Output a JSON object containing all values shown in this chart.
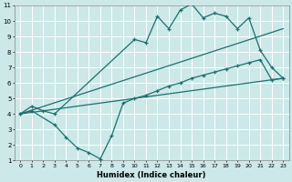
{
  "xlabel": "Humidex (Indice chaleur)",
  "xlim": [
    -0.5,
    23.5
  ],
  "ylim": [
    1,
    11
  ],
  "xticks": [
    0,
    1,
    2,
    3,
    4,
    5,
    6,
    7,
    8,
    9,
    10,
    11,
    12,
    13,
    14,
    15,
    16,
    17,
    18,
    19,
    20,
    21,
    22,
    23
  ],
  "yticks": [
    1,
    2,
    3,
    4,
    5,
    6,
    7,
    8,
    9,
    10,
    11
  ],
  "bg_color": "#cce8e8",
  "line_color": "#1a7070",
  "grid_color": "#ffffff",
  "line1_x": [
    0,
    1,
    2,
    3,
    10,
    11,
    12,
    13,
    14,
    15,
    16,
    17,
    18,
    19,
    20,
    21,
    22,
    23
  ],
  "line1_y": [
    4.0,
    4.5,
    4.2,
    4.0,
    8.8,
    8.6,
    10.3,
    9.5,
    10.7,
    11.1,
    10.2,
    10.5,
    10.3,
    9.5,
    10.2,
    8.1,
    7.0,
    6.3
  ],
  "line2_x": [
    0,
    23
  ],
  "line2_y": [
    4.0,
    6.3
  ],
  "line3_x": [
    0,
    23
  ],
  "line3_y": [
    4.0,
    9.5
  ],
  "line4_x": [
    0,
    1,
    3,
    4,
    5,
    6,
    7,
    8,
    9,
    10,
    11,
    12,
    13,
    14,
    15,
    16,
    17,
    18,
    19,
    20,
    21,
    22,
    23
  ],
  "line4_y": [
    4.0,
    4.2,
    3.3,
    2.5,
    1.8,
    1.5,
    1.1,
    2.6,
    4.7,
    5.0,
    5.2,
    5.5,
    5.8,
    6.0,
    6.3,
    6.5,
    6.7,
    6.9,
    7.1,
    7.3,
    7.5,
    6.2,
    6.3
  ]
}
